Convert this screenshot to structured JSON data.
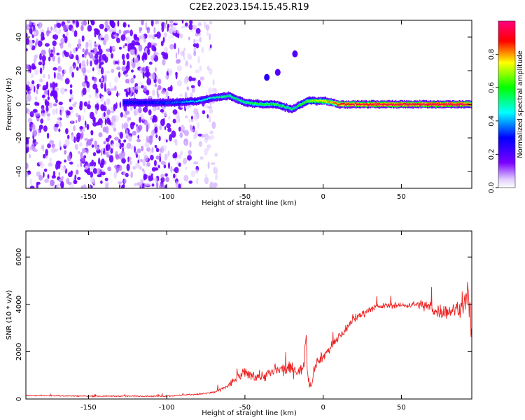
{
  "title": "C2E2.2023.154.15.45.R19",
  "colors": {
    "snr_line": "#ee2222",
    "axes": "#000000",
    "background": "#ffffff"
  },
  "chart_data": [
    {
      "type": "heatmap",
      "title": "C2E2.2023.154.15.45.R19",
      "xlabel": "Height of straight line (km)",
      "ylabel": "Frequency (Hz)",
      "xlim": [
        -190,
        95
      ],
      "ylim": [
        -50,
        50
      ],
      "x_ticks": [
        -150,
        -100,
        -50,
        0,
        50
      ],
      "y_ticks": [
        -40,
        -20,
        0,
        20,
        40
      ],
      "colorbar": {
        "label": "Normalized spectral amplitude",
        "range": [
          0.0,
          1.0
        ],
        "ticks": [
          0.0,
          0.2,
          0.4,
          0.6,
          0.8
        ],
        "colormap": [
          "#ffffff",
          "#e8d8ff",
          "#6a00ff",
          "#0000ff",
          "#00ffff",
          "#00ff00",
          "#ffff00",
          "#ff0000",
          "#ff007f"
        ]
      },
      "features": {
        "noise_region_x": [
          -190,
          -68
        ],
        "noise_level": 0.35,
        "signal_ridge": [
          {
            "x": -128,
            "f": 1.0,
            "amp": 0.25
          },
          {
            "x": -110,
            "f": 1.0,
            "amp": 0.3
          },
          {
            "x": -95,
            "f": 1.0,
            "amp": 0.35
          },
          {
            "x": -80,
            "f": 2.0,
            "amp": 0.45
          },
          {
            "x": -70,
            "f": 4.0,
            "amp": 0.5
          },
          {
            "x": -60,
            "f": 5.0,
            "amp": 0.55
          },
          {
            "x": -50,
            "f": 1.0,
            "amp": 0.55
          },
          {
            "x": -40,
            "f": 0.0,
            "amp": 0.6
          },
          {
            "x": -30,
            "f": 0.0,
            "amp": 0.6
          },
          {
            "x": -20,
            "f": -3.0,
            "amp": 0.55
          },
          {
            "x": -10,
            "f": 2.0,
            "amp": 0.65
          },
          {
            "x": 0,
            "f": 2.0,
            "amp": 0.75
          },
          {
            "x": 6,
            "f": 1.0,
            "amp": 0.8
          },
          {
            "x": 10,
            "f": 0.0,
            "amp": 0.92
          },
          {
            "x": 50,
            "f": 0.0,
            "amp": 0.95
          },
          {
            "x": 90,
            "f": 0.0,
            "amp": 0.95
          },
          {
            "x": 95,
            "f": 0.0,
            "amp": 0.9
          }
        ],
        "spurious_blobs": [
          {
            "x": -36,
            "f": 16,
            "amp": 0.25
          },
          {
            "x": -29,
            "f": 19,
            "amp": 0.2
          },
          {
            "x": -18,
            "f": 30,
            "amp": 0.2
          }
        ]
      }
    },
    {
      "type": "line",
      "xlabel": "Height of straight line (km)",
      "ylabel": "SNR (10 * v/v)",
      "xlim": [
        -190,
        95
      ],
      "ylim": [
        0,
        7100
      ],
      "x_ticks": [
        -150,
        -100,
        -50,
        0,
        50
      ],
      "y_ticks": [
        0,
        2000,
        4000,
        6000
      ],
      "series": [
        {
          "x": [
            -190,
            -150,
            -100,
            -80,
            -70,
            -65,
            -60,
            -55,
            -50,
            -45,
            -40,
            -35,
            -30,
            -25,
            -20,
            -15,
            -12,
            -11,
            -10,
            -8,
            -5,
            0,
            10,
            20,
            30,
            40,
            50,
            60,
            65,
            70,
            75,
            80,
            85,
            90,
            92,
            94,
            95
          ],
          "mean": [
            150,
            120,
            120,
            200,
            280,
            400,
            600,
            900,
            1100,
            1000,
            950,
            1050,
            1200,
            1250,
            1300,
            1150,
            1500,
            3000,
            1100,
            500,
            1500,
            1800,
            2600,
            3400,
            3800,
            3950,
            3950,
            4000,
            3950,
            3800,
            3700,
            3700,
            3800,
            3900,
            4500,
            3500,
            2500
          ],
          "noise": [
            40,
            40,
            45,
            60,
            100,
            150,
            250,
            350,
            400,
            450,
            450,
            450,
            500,
            500,
            500,
            450,
            400,
            900,
            600,
            400,
            400,
            400,
            400,
            350,
            250,
            200,
            200,
            250,
            500,
            600,
            600,
            550,
            550,
            600,
            1500,
            1800,
            1200
          ]
        }
      ]
    }
  ]
}
